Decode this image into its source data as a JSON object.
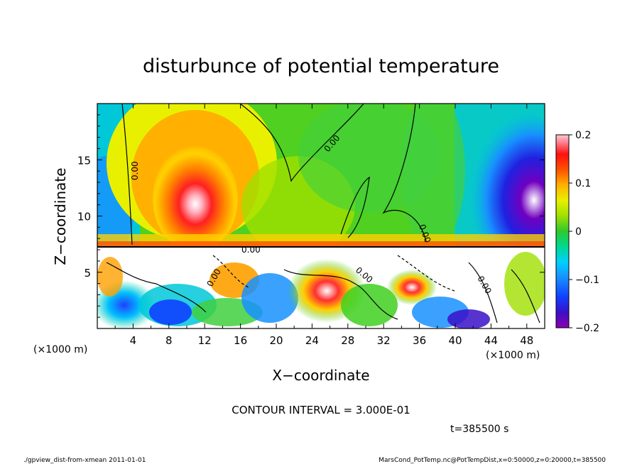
{
  "chart_data": {
    "type": "heatmap",
    "title": "disturbunce of potential temperature",
    "xlabel": "X−coordinate",
    "ylabel": "Z−coordinate",
    "x_unit": "(×1000 m)",
    "y_unit": "(×1000 m)",
    "xlim": [
      0,
      50
    ],
    "ylim": [
      0,
      20
    ],
    "x_ticks": [
      4,
      8,
      12,
      16,
      20,
      24,
      28,
      32,
      36,
      40,
      44,
      48
    ],
    "y_ticks": [
      5,
      10,
      15
    ],
    "colorbar": {
      "range": [
        -0.2,
        0.2
      ],
      "ticks": [
        0.2,
        0.1,
        0,
        -0.1,
        -0.2
      ],
      "tick_labels": [
        "0.2",
        "0.1",
        "0",
        "−0.1",
        "−0.2"
      ],
      "colors": [
        "#8b00b0",
        "#3a10c8",
        "#1040ff",
        "#1890ff",
        "#00c8ff",
        "#00e0d0",
        "#00d890",
        "#00c040",
        "#40d020",
        "#a0e000",
        "#e8f000",
        "#ffd000",
        "#ffa000",
        "#ff6000",
        "#ff2000",
        "#ff6080",
        "#ffb0c0",
        "#ffffff"
      ]
    },
    "contour_labels": [
      "0.00",
      "0.00",
      "0.00",
      "0.00",
      "0.00",
      "0.00",
      "0.00"
    ],
    "contour_interval_text": "CONTOUR INTERVAL = 3.000E-01",
    "time_text": "t=385500 s"
  },
  "footer": {
    "left": "./gpview_dist-from-xmean  2011-01-01",
    "right": "MarsCond_PotTemp.nc@PotTempDist,x=0:50000,z=0:20000,t=385500"
  }
}
